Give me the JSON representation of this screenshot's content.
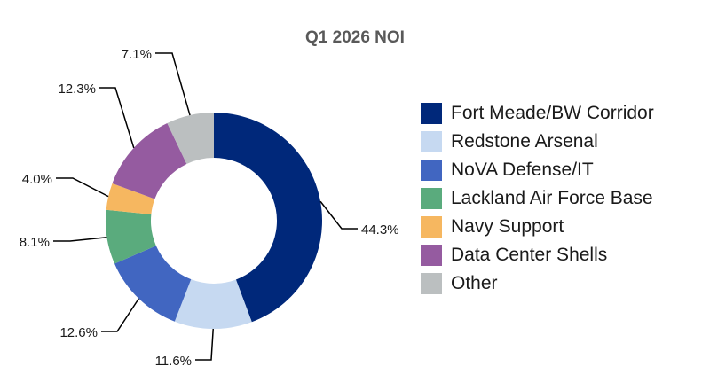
{
  "chart_data": {
    "type": "pie",
    "variant": "donut",
    "title": "Q1 2026 NOI",
    "unit": "%",
    "categories": [
      "Fort Meade/BW Corridor",
      "Redstone Arsenal",
      "NoVA Defense/IT",
      "Lackland Air Force Base",
      "Navy Support",
      "Data Center Shells",
      "Other"
    ],
    "values": [
      44.3,
      11.6,
      12.6,
      8.1,
      4.0,
      12.3,
      7.1
    ],
    "value_labels": [
      "44.3%",
      "11.6%",
      "12.6%",
      "8.1%",
      "4.0%",
      "12.3%",
      "7.1%"
    ],
    "colors": [
      "#00287a",
      "#c6d9f1",
      "#4166c1",
      "#5aab7d",
      "#f6b760",
      "#955ba0",
      "#bbbfc0"
    ],
    "start": "12 o'clock",
    "direction": "clockwise",
    "legend_position": "right"
  }
}
